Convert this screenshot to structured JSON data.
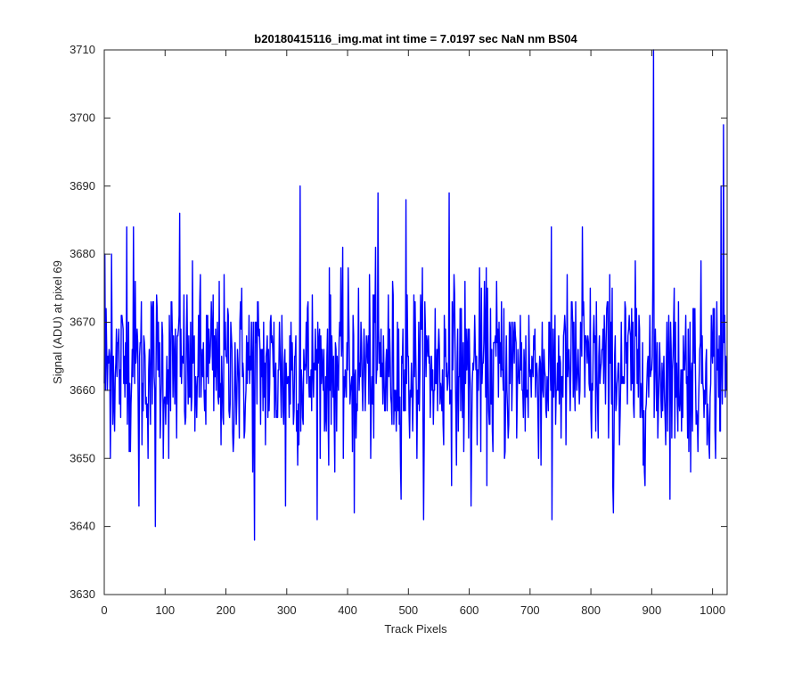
{
  "chart_data": {
    "type": "line",
    "title": "b20180415116_img.mat int time = 7.0197 sec  NaN nm BS04",
    "xlabel": "Track Pixels",
    "ylabel": "Signal (ADU) at pixel 69",
    "xlim": [
      0,
      1024
    ],
    "ylim": [
      3630,
      3710
    ],
    "xticks": [
      0,
      100,
      200,
      300,
      400,
      500,
      600,
      700,
      800,
      900,
      1000
    ],
    "yticks": [
      3630,
      3640,
      3650,
      3660,
      3670,
      3680,
      3690,
      3700,
      3710
    ],
    "grid": false,
    "series": [
      {
        "color": "#0000ff",
        "mean": 3663,
        "n_points": 1024,
        "min": 3638,
        "max": 3710,
        "peaks": [
          {
            "x": 1,
            "y": 3680
          },
          {
            "x": 12,
            "y": 3680
          },
          {
            "x": 37,
            "y": 3684
          },
          {
            "x": 48,
            "y": 3684
          },
          {
            "x": 57,
            "y": 3643
          },
          {
            "x": 84,
            "y": 3640
          },
          {
            "x": 124,
            "y": 3686
          },
          {
            "x": 247,
            "y": 3638
          },
          {
            "x": 298,
            "y": 3643
          },
          {
            "x": 322,
            "y": 3690
          },
          {
            "x": 411,
            "y": 3642
          },
          {
            "x": 450,
            "y": 3689
          },
          {
            "x": 496,
            "y": 3688
          },
          {
            "x": 567,
            "y": 3689
          },
          {
            "x": 603,
            "y": 3643
          },
          {
            "x": 736,
            "y": 3641
          },
          {
            "x": 786,
            "y": 3684
          },
          {
            "x": 837,
            "y": 3642
          },
          {
            "x": 903,
            "y": 3710
          },
          {
            "x": 1014,
            "y": 3690
          },
          {
            "x": 1018,
            "y": 3699
          }
        ]
      }
    ]
  }
}
